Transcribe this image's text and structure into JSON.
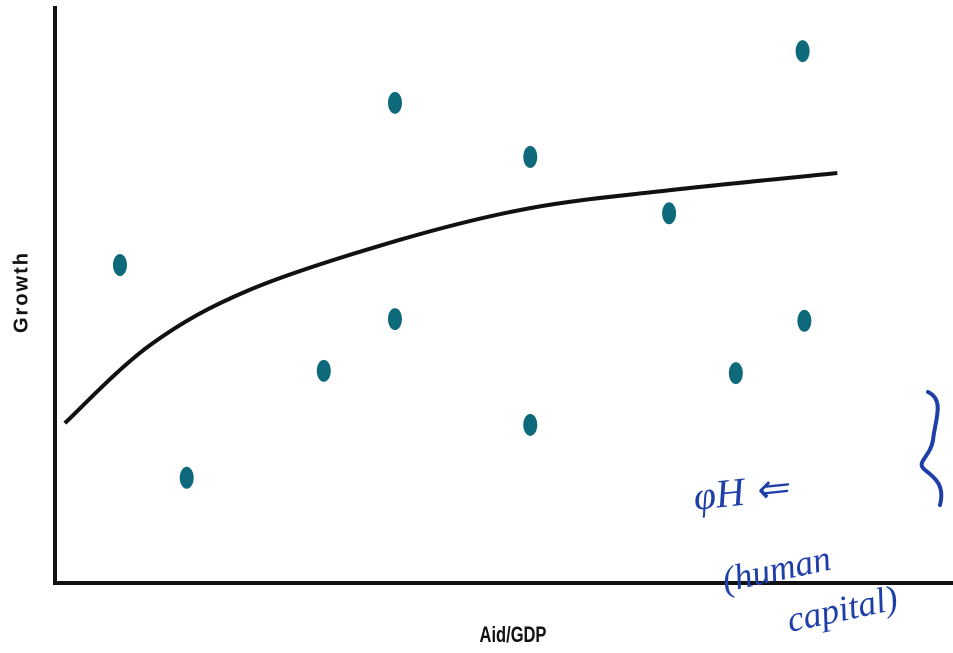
{
  "chart_data": {
    "type": "scatter",
    "x_label": "Aid/GDP",
    "y_label": "Growth",
    "xlim": [
      0,
      100
    ],
    "ylim": [
      0,
      100
    ],
    "color": "#0e6a7a",
    "x": [
      7.3,
      14.8,
      30.2,
      38.2,
      38.2,
      53.4,
      53.4,
      69.0,
      76.5,
      84.0,
      84.2
    ],
    "y": [
      55.3,
      18.3,
      36.9,
      83.5,
      45.9,
      74.1,
      27.5,
      64.3,
      36.5,
      92.5,
      45.6
    ],
    "curve": {
      "color": "#111111",
      "x": [
        1.1,
        10.7,
        21.9,
        38.8,
        53.4,
        69.0,
        87.9
      ],
      "y": [
        27.8,
        41.4,
        51.0,
        59.7,
        65.2,
        68.3,
        71.3
      ]
    },
    "annotations": [
      "φH ⇐",
      "(human",
      "capital)"
    ]
  }
}
